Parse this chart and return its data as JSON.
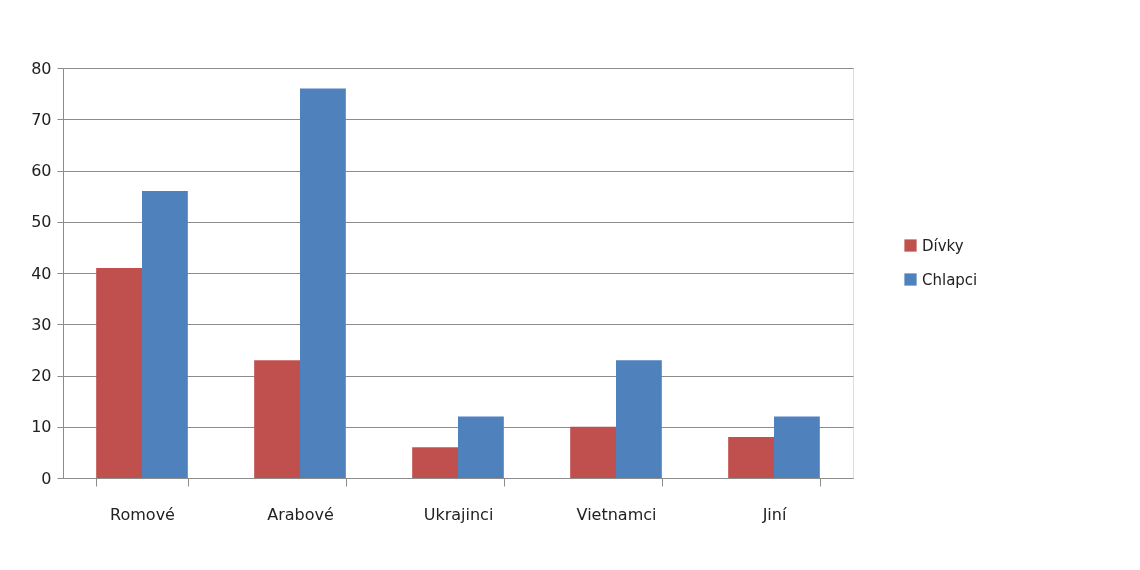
{
  "chart_data": {
    "type": "bar",
    "categories": [
      "Romové",
      "Arabové",
      "Ukrajinci",
      "Vietnamci",
      "Jiní"
    ],
    "series": [
      {
        "name": "Dívky",
        "color": "#c0504d",
        "values": [
          41,
          23,
          6,
          10,
          8
        ]
      },
      {
        "name": "Chlapci",
        "color": "#4f81bd",
        "values": [
          56,
          76,
          12,
          23,
          12
        ]
      }
    ],
    "ylim": [
      0,
      80
    ],
    "yticks": [
      0,
      10,
      20,
      30,
      40,
      50,
      60,
      70,
      80
    ],
    "grid": "y",
    "legend": "right"
  }
}
